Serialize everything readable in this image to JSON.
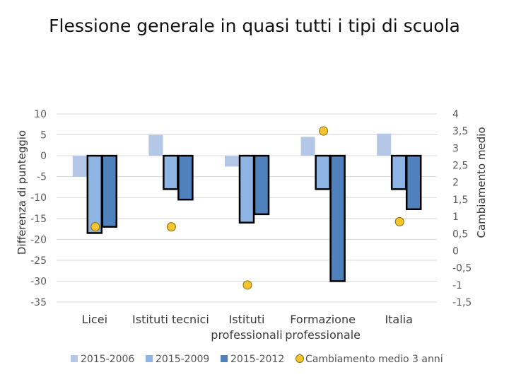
{
  "page": {
    "title": "Flessione generale in quasi tutti i tipi di scuola"
  },
  "chart_data": {
    "type": "bar",
    "categories": [
      [
        "Licei"
      ],
      [
        "Istituti tecnici"
      ],
      [
        "Istituti",
        "professionali"
      ],
      [
        "Formazione",
        "professionale"
      ],
      [
        "Italia"
      ]
    ],
    "series": [
      {
        "name": "2015-2006",
        "color": "#b4c7e7",
        "values": [
          -5,
          5,
          -2.6,
          4.5,
          5.3
        ]
      },
      {
        "name": "2015-2009",
        "color": "#8db4e2",
        "values": [
          -18.5,
          -8,
          -16,
          -8,
          -8
        ]
      },
      {
        "name": "2015-2012",
        "color": "#4f81bd",
        "values": [
          -17,
          -10.5,
          -14,
          -30,
          -12.8
        ]
      }
    ],
    "line_series": {
      "name": "Cambiamento medio 3 anni",
      "color": "#f4c430",
      "values": [
        0.7,
        0.7,
        -1.0,
        3.5,
        0.85
      ]
    },
    "ylabel": "Differenza di punteggio",
    "y2label": "Cambiamento medio",
    "ylim": [
      -35,
      10
    ],
    "yticks": [
      10,
      5,
      0,
      -5,
      -10,
      -15,
      -20,
      -25,
      -30,
      -35
    ],
    "y2lim": [
      -1.5,
      4
    ],
    "y2ticks": [
      "4",
      "3,5",
      "3",
      "2,5",
      "2",
      "1,5",
      "1",
      "0,5",
      "0",
      "-0,5",
      "-1",
      "-1,5"
    ],
    "y2tick_values": [
      4,
      3.5,
      3,
      2.5,
      2,
      1.5,
      1,
      0.5,
      0,
      -0.5,
      -1,
      -1.5
    ],
    "grid": true,
    "legend_position": "bottom"
  }
}
